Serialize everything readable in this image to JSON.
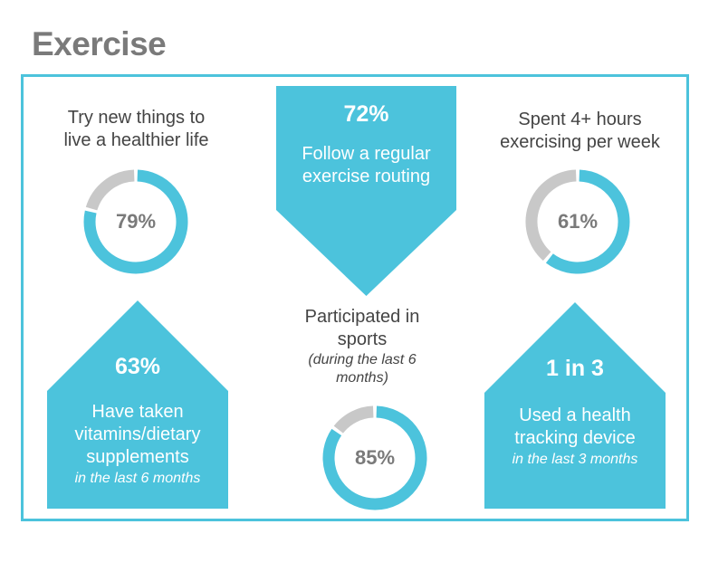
{
  "title": "Exercise",
  "colors": {
    "accent": "#4cc3dc",
    "track": "#c8c8c8",
    "title": "#7a7a7a",
    "text": "#444444"
  },
  "chart_data": {
    "type": "infographic",
    "donuts": [
      {
        "label_lines": [
          "Try new things to",
          "live a healthier life"
        ],
        "value": 79,
        "value_label": "79%"
      },
      {
        "label_lines": [
          "Spent 4+ hours",
          "exercising per week"
        ],
        "value": 61,
        "value_label": "61%"
      },
      {
        "label_lines": [
          "Participated in",
          "sports"
        ],
        "note_lines": [
          "(during the last 6",
          "months)"
        ],
        "value": 85,
        "value_label": "85%"
      }
    ],
    "callouts": [
      {
        "stat": "72%",
        "text_lines": [
          "Follow a regular",
          "exercise routing"
        ]
      },
      {
        "stat": "63%",
        "text_lines": [
          "Have taken",
          "vitamins/dietary",
          "supplements"
        ],
        "italic": "in the last 6 months"
      },
      {
        "stat": "1 in 3",
        "text_lines": [
          "Used a health",
          "tracking device"
        ],
        "italic": "in the last 3 months"
      }
    ]
  }
}
